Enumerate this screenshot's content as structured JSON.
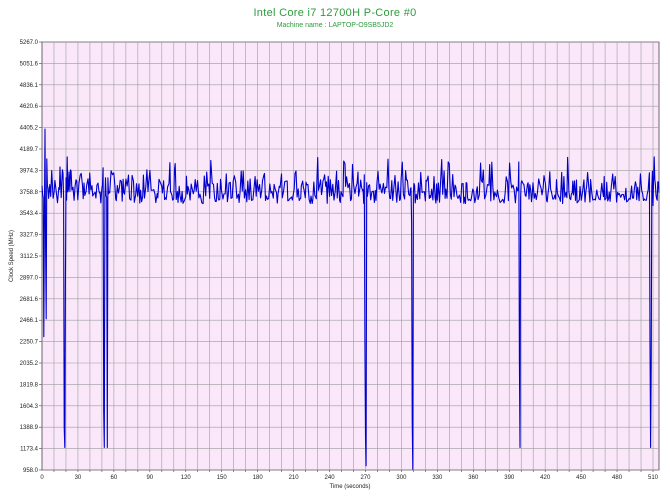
{
  "chart_data": {
    "type": "line",
    "title": "Intel Core i7 12700H P-Core #0",
    "subtitle": "Machine name : LAPTOP-O9SB5JD2",
    "xlabel": "Time (seconds)",
    "ylabel": "Clock Speed (MHz)",
    "xlim": [
      0,
      515
    ],
    "ylim": [
      958.0,
      5267.0
    ],
    "x_ticks": [
      "0",
      "30",
      "60",
      "90",
      "120",
      "150",
      "180",
      "210",
      "240",
      "270",
      "300",
      "330",
      "360",
      "390",
      "420",
      "450",
      "480",
      "510"
    ],
    "y_ticks": [
      "5267.0",
      "5051.6",
      "4836.1",
      "4620.6",
      "4405.2",
      "4189.7",
      "3974.3",
      "3758.8",
      "3543.4",
      "3327.9",
      "3112.5",
      "2897.0",
      "2681.6",
      "2466.1",
      "2250.7",
      "2035.2",
      "1819.8",
      "1604.3",
      "1388.9",
      "1173.4",
      "958.0"
    ],
    "grid": true,
    "series": [
      {
        "color": "#0000cc",
        "baseline": 3760,
        "band": [
          3640,
          3990
        ],
        "points": [
          [
            0,
            3820
          ],
          [
            1,
            3700
          ],
          [
            1.5,
            2300
          ],
          [
            2,
            3500
          ],
          [
            2.5,
            4390
          ],
          [
            3,
            3200
          ],
          [
            3.5,
            2480
          ],
          [
            4,
            4090
          ],
          [
            5,
            3800
          ],
          [
            14,
            3800
          ],
          [
            15,
            4010
          ],
          [
            16,
            3700
          ],
          [
            17,
            3980
          ],
          [
            18,
            3700
          ],
          [
            18.5,
            1390
          ],
          [
            19,
            1185
          ],
          [
            19.5,
            2800
          ],
          [
            20,
            3900
          ],
          [
            21,
            4110
          ],
          [
            22,
            3780
          ],
          [
            50,
            3800
          ],
          [
            51,
            4000
          ],
          [
            51.5,
            1550
          ],
          [
            52,
            1185
          ],
          [
            52.5,
            3700
          ],
          [
            53,
            3900
          ],
          [
            54,
            3700
          ],
          [
            54.5,
            1185
          ],
          [
            55,
            3900
          ],
          [
            56,
            3760
          ],
          [
            268,
            3780
          ],
          [
            269,
            3930
          ],
          [
            269.5,
            2250
          ],
          [
            270,
            1290
          ],
          [
            270.5,
            1000
          ],
          [
            271,
            3850
          ],
          [
            272,
            3750
          ],
          [
            307,
            3720
          ],
          [
            308,
            3800
          ],
          [
            308.5,
            3450
          ],
          [
            309,
            1450
          ],
          [
            309.5,
            965
          ],
          [
            310,
            3750
          ],
          [
            311,
            3820
          ],
          [
            397,
            3770
          ],
          [
            398,
            4060
          ],
          [
            398.5,
            2050
          ],
          [
            399,
            1185
          ],
          [
            399.5,
            3700
          ],
          [
            400,
            3850
          ],
          [
            506,
            3780
          ],
          [
            507,
            3950
          ],
          [
            507.5,
            2220
          ],
          [
            508,
            1185
          ],
          [
            508.5,
            2000
          ],
          [
            509,
            3800
          ],
          [
            510,
            3620
          ],
          [
            511,
            4110
          ],
          [
            512,
            3830
          ],
          [
            513,
            3690
          ],
          [
            514,
            3860
          ],
          [
            515,
            3750
          ]
        ]
      }
    ]
  }
}
